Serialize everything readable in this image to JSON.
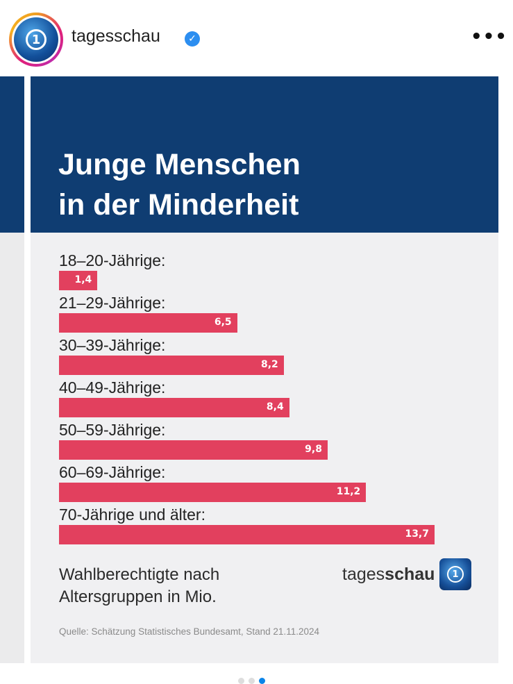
{
  "post": {
    "username": "tagesschau",
    "verified": true,
    "more_icon": "more-horizontal-icon",
    "carousel": {
      "total": 3,
      "active": 3
    }
  },
  "graphic": {
    "title_line1": "Junge Menschen",
    "title_line2": "in der Minderheit",
    "subtitle_line1": "Wahlberechtigte nach",
    "subtitle_line2": "Altersgruppen in Mio.",
    "brand_light": "tages",
    "brand_bold": "schau",
    "source": "Quelle: Schätzung Statistisches Bundesamt, Stand 21.11.2024",
    "colors": {
      "header": "#0f3d72",
      "bar": "#e2405e",
      "background": "#f0f0f2"
    }
  },
  "chart_data": {
    "type": "bar",
    "orientation": "horizontal",
    "title": "Junge Menschen in der Minderheit",
    "ylabel": "Wahlberechtigte nach Altersgruppen in Mio.",
    "categories": [
      "18–20-Jährige:",
      "21–29-Jährige:",
      "30–39-Jährige:",
      "40–49-Jährige:",
      "50–59-Jährige:",
      "60–69-Jährige:",
      "70-Jährige und älter:"
    ],
    "values": [
      1.4,
      6.5,
      8.2,
      8.4,
      9.8,
      11.2,
      13.7
    ],
    "value_labels": [
      "1,4",
      "6,5",
      "8,2",
      "8,4",
      "9,8",
      "11,2",
      "13,7"
    ],
    "xlim": [
      0,
      13.7
    ]
  }
}
